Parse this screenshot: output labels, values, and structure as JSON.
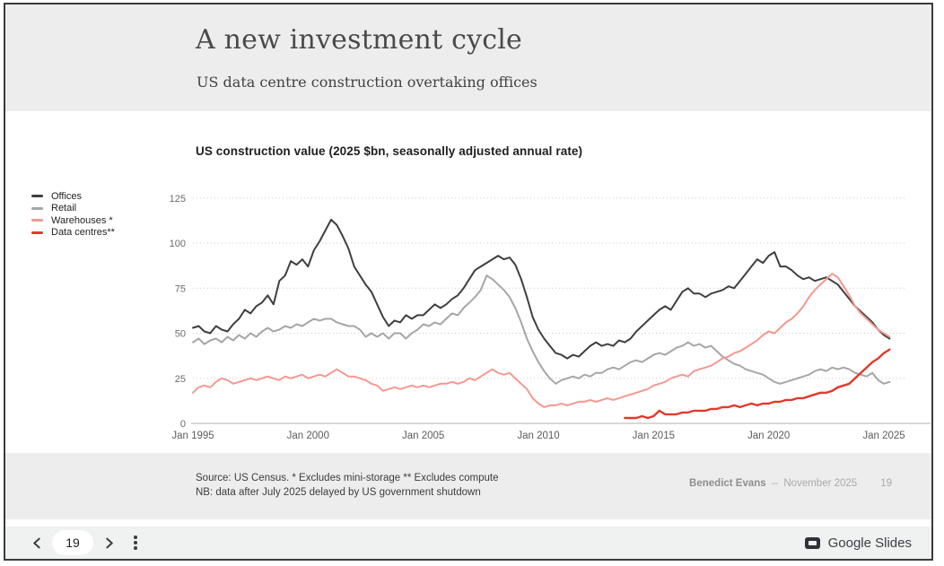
{
  "slide": {
    "title": "A new investment cycle",
    "subtitle": "US data centre construction overtaking offices",
    "footer": {
      "source_line1": "Source: US Census. * Excludes mini-storage ** Excludes compute",
      "source_line2": "NB: data after July 2025 delayed by US government shutdown",
      "author": "Benedict Evans",
      "separator": "--",
      "date": "November 2025",
      "page_number": "19"
    }
  },
  "chart_data": {
    "type": "line",
    "title": "US construction value (2025 $bn, seasonally adjusted annual rate)",
    "legend_position": "left",
    "grid": "horizontal-dotted",
    "x_axis": {
      "ticks": [
        "Jan 1995",
        "Jan 2000",
        "Jan 2005",
        "Jan 2010",
        "Jan 2015",
        "Jan 2020",
        "Jan 2025"
      ],
      "tick_years": [
        1995,
        2000,
        2005,
        2010,
        2015,
        2020,
        2025
      ],
      "range": [
        1995,
        2025.5
      ]
    },
    "y_axis": {
      "ticks": [
        0,
        25,
        50,
        75,
        100,
        125
      ],
      "range": [
        0,
        130
      ]
    },
    "series": [
      {
        "name": "Offices",
        "color": "#3f3f3f",
        "stroke_width": 2,
        "start": 1995.0,
        "step": 0.25,
        "values": [
          53,
          54,
          51,
          50,
          54,
          52,
          51,
          55,
          58,
          63,
          61,
          65,
          67,
          71,
          66,
          79,
          82,
          90,
          88,
          91,
          87,
          96,
          101,
          107,
          113,
          110,
          104,
          97,
          87,
          82,
          77,
          73,
          66,
          59,
          54,
          57,
          56,
          60,
          58,
          60,
          60,
          63,
          66,
          64,
          66,
          69,
          71,
          75,
          80,
          85,
          87,
          89,
          91,
          93,
          91,
          92,
          88,
          80,
          70,
          59,
          52,
          47,
          43,
          39,
          38,
          36,
          38,
          37,
          40,
          43,
          45,
          43,
          44,
          43,
          46,
          45,
          47,
          51,
          54,
          57,
          60,
          63,
          65,
          63,
          68,
          73,
          75,
          72,
          72,
          70,
          72,
          73,
          74,
          76,
          75,
          79,
          83,
          87,
          91,
          89,
          93,
          95,
          87,
          87,
          85,
          82,
          80,
          81,
          79,
          80,
          81,
          79,
          77,
          73,
          69,
          65,
          62,
          59,
          56,
          52,
          49,
          47
        ]
      },
      {
        "name": "Retail",
        "color": "#a6a6a6",
        "stroke_width": 2,
        "start": 1995.0,
        "step": 0.25,
        "values": [
          45,
          47,
          44,
          46,
          47,
          45,
          48,
          46,
          49,
          47,
          50,
          48,
          51,
          53,
          51,
          52,
          54,
          53,
          55,
          54,
          56,
          58,
          57,
          58,
          58,
          56,
          55,
          54,
          54,
          52,
          48,
          50,
          48,
          50,
          47,
          50,
          50,
          47,
          50,
          52,
          55,
          54,
          56,
          55,
          58,
          61,
          60,
          64,
          67,
          70,
          74,
          82,
          80,
          77,
          74,
          70,
          64,
          56,
          47,
          40,
          34,
          29,
          25,
          22,
          24,
          25,
          26,
          25,
          27,
          26,
          28,
          28,
          30,
          31,
          30,
          32,
          34,
          35,
          34,
          36,
          38,
          39,
          38,
          40,
          42,
          43,
          45,
          43,
          44,
          42,
          43,
          40,
          37,
          35,
          33,
          32,
          30,
          29,
          28,
          27,
          25,
          23,
          22,
          23,
          24,
          25,
          26,
          27,
          29,
          30,
          29,
          31,
          30,
          31,
          30,
          28,
          27,
          26,
          28,
          24,
          22,
          23
        ]
      },
      {
        "name": "Warehouses *",
        "color": "#f4988f",
        "stroke_width": 2,
        "start": 1995.0,
        "step": 0.25,
        "values": [
          17,
          20,
          21,
          20,
          23,
          25,
          24,
          22,
          23,
          24,
          25,
          24,
          25,
          26,
          25,
          24,
          26,
          25,
          26,
          27,
          25,
          26,
          27,
          26,
          28,
          30,
          28,
          26,
          26,
          25,
          24,
          22,
          21,
          18,
          19,
          20,
          19,
          20,
          21,
          20,
          21,
          20,
          21,
          22,
          22,
          23,
          22,
          23,
          25,
          24,
          26,
          28,
          30,
          28,
          27,
          28,
          25,
          22,
          19,
          14,
          11,
          9,
          10,
          10,
          11,
          10,
          11,
          12,
          12,
          13,
          12,
          13,
          14,
          13,
          14,
          15,
          16,
          17,
          18,
          19,
          21,
          22,
          23,
          25,
          26,
          27,
          26,
          29,
          30,
          31,
          32,
          34,
          36,
          37,
          39,
          40,
          42,
          44,
          46,
          49,
          51,
          50,
          53,
          56,
          58,
          61,
          65,
          70,
          74,
          77,
          80,
          83,
          81,
          76,
          71,
          65,
          61,
          58,
          55,
          52,
          50,
          48
        ]
      },
      {
        "name": "Data centres**",
        "color": "#e03a2c",
        "stroke_width": 2.4,
        "start": 2013.75,
        "step": 0.25,
        "values": [
          3,
          3,
          3,
          4,
          3,
          4,
          7,
          5,
          5,
          5,
          6,
          6,
          7,
          7,
          7,
          8,
          8,
          9,
          9,
          10,
          9,
          10,
          11,
          10,
          11,
          11,
          12,
          12,
          13,
          13,
          14,
          14,
          15,
          16,
          17,
          17,
          18,
          20,
          21,
          22,
          25,
          28,
          31,
          34,
          36,
          39,
          41
        ]
      }
    ]
  },
  "controls": {
    "page_number": "19",
    "app_name": "Google Slides"
  }
}
